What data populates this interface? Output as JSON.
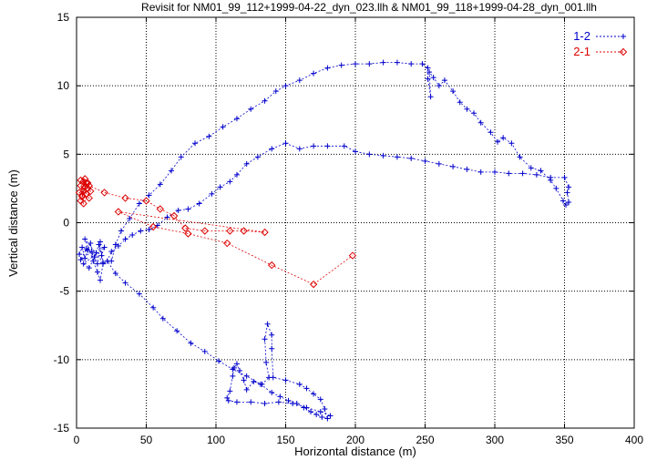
{
  "chart_data": {
    "type": "line",
    "title": "Revisit for NM01_99_112+1999-04-22_dyn_023.llh & NM01_99_118+1999-04-28_dyn_001.llh",
    "xlabel": "Horizontal distance (m)",
    "ylabel": "Vertical distance (m)",
    "xlim": [
      0,
      400
    ],
    "ylim": [
      -15,
      15
    ],
    "xticks": [
      0,
      50,
      100,
      150,
      200,
      250,
      300,
      350,
      400
    ],
    "yticks": [
      -15,
      -10,
      -5,
      0,
      5,
      10,
      15
    ],
    "grid": true,
    "legend_position": "top-right",
    "series": [
      {
        "name": "1-2",
        "color": "#0000cc",
        "marker": "plus",
        "line": "dashed",
        "points": [
          [
            2,
            -2.3
          ],
          [
            4,
            -1.8
          ],
          [
            6,
            -2.6
          ],
          [
            8,
            -2.0
          ],
          [
            10,
            -1.5
          ],
          [
            12,
            -2.8
          ],
          [
            14,
            -2.2
          ],
          [
            16,
            -1.6
          ],
          [
            18,
            -2.4
          ],
          [
            20,
            -1.8
          ],
          [
            5,
            -3.0
          ],
          [
            9,
            -3.3
          ],
          [
            13,
            -2.5
          ],
          [
            7,
            -1.9
          ],
          [
            3,
            -2.7
          ],
          [
            11,
            -2.1
          ],
          [
            15,
            -3.0
          ],
          [
            17,
            -1.4
          ],
          [
            19,
            -2.9
          ],
          [
            6,
            -1.2
          ],
          [
            15,
            -3.6
          ],
          [
            17,
            -4.2
          ],
          [
            19,
            -3.0
          ],
          [
            25,
            -2.8
          ],
          [
            28,
            -1.6
          ],
          [
            32,
            -0.6
          ],
          [
            38,
            0.3
          ],
          [
            45,
            1.4
          ],
          [
            52,
            2.0
          ],
          [
            60,
            2.8
          ],
          [
            68,
            3.8
          ],
          [
            75,
            4.8
          ],
          [
            85,
            5.8
          ],
          [
            95,
            6.3
          ],
          [
            105,
            7.0
          ],
          [
            115,
            7.6
          ],
          [
            125,
            8.3
          ],
          [
            135,
            8.9
          ],
          [
            143,
            9.6
          ],
          [
            150,
            10.0
          ],
          [
            160,
            10.4
          ],
          [
            170,
            10.9
          ],
          [
            180,
            11.3
          ],
          [
            190,
            11.5
          ],
          [
            200,
            11.6
          ],
          [
            210,
            11.6
          ],
          [
            220,
            11.7
          ],
          [
            230,
            11.7
          ],
          [
            240,
            11.6
          ],
          [
            248,
            11.6
          ],
          [
            252,
            11.3
          ],
          [
            252,
            10.5
          ],
          [
            254,
            9.2
          ],
          [
            253,
            11.0
          ],
          [
            256,
            10.6
          ],
          [
            260,
            10.0
          ],
          [
            264,
            10.4
          ],
          [
            270,
            9.6
          ],
          [
            275,
            8.8
          ],
          [
            280,
            8.3
          ],
          [
            285,
            8.0
          ],
          [
            290,
            7.3
          ],
          [
            297,
            6.6
          ],
          [
            302,
            5.9
          ],
          [
            306,
            6.2
          ],
          [
            312,
            5.8
          ],
          [
            318,
            4.8
          ],
          [
            326,
            4.0
          ],
          [
            333,
            3.8
          ],
          [
            340,
            3.1
          ],
          [
            344,
            2.5
          ],
          [
            349,
            1.6
          ],
          [
            351,
            1.3
          ],
          [
            353,
            1.5
          ],
          [
            352,
            2.2
          ],
          [
            353,
            2.6
          ],
          [
            350,
            3.3
          ],
          [
            340,
            3.3
          ],
          [
            330,
            3.5
          ],
          [
            320,
            3.6
          ],
          [
            310,
            3.6
          ],
          [
            300,
            3.7
          ],
          [
            290,
            3.7
          ],
          [
            280,
            3.9
          ],
          [
            270,
            4.1
          ],
          [
            260,
            4.3
          ],
          [
            250,
            4.5
          ],
          [
            240,
            4.7
          ],
          [
            230,
            4.8
          ],
          [
            220,
            4.9
          ],
          [
            210,
            5.0
          ],
          [
            200,
            5.2
          ],
          [
            192,
            5.6
          ],
          [
            180,
            5.6
          ],
          [
            170,
            5.6
          ],
          [
            160,
            5.4
          ],
          [
            150,
            5.8
          ],
          [
            140,
            5.4
          ],
          [
            130,
            4.8
          ],
          [
            122,
            4.3
          ],
          [
            115,
            3.5
          ],
          [
            110,
            3.0
          ],
          [
            103,
            2.6
          ],
          [
            97,
            2.1
          ],
          [
            88,
            1.4
          ],
          [
            80,
            1.0
          ],
          [
            73,
            0.9
          ],
          [
            65,
            0.4
          ],
          [
            58,
            -0.2
          ],
          [
            52,
            -0.5
          ],
          [
            46,
            -0.6
          ],
          [
            40,
            -0.9
          ],
          [
            35,
            -1.2
          ],
          [
            30,
            -1.7
          ],
          [
            25,
            -2.1
          ],
          [
            22,
            -2.8
          ],
          [
            28,
            -3.7
          ],
          [
            35,
            -4.4
          ],
          [
            45,
            -5.2
          ],
          [
            55,
            -6.2
          ],
          [
            62,
            -7.0
          ],
          [
            72,
            -7.9
          ],
          [
            82,
            -8.8
          ],
          [
            92,
            -9.4
          ],
          [
            102,
            -10.1
          ],
          [
            112,
            -10.7
          ],
          [
            122,
            -11.2
          ],
          [
            132,
            -11.8
          ],
          [
            140,
            -12.4
          ],
          [
            146,
            -12.7
          ],
          [
            152,
            -13.0
          ],
          [
            158,
            -13.2
          ],
          [
            163,
            -13.5
          ],
          [
            168,
            -13.8
          ],
          [
            172,
            -14.0
          ],
          [
            176,
            -14.2
          ],
          [
            180,
            -14.3
          ],
          [
            178,
            -13.6
          ],
          [
            175,
            -12.9
          ],
          [
            170,
            -12.5
          ],
          [
            165,
            -12.1
          ],
          [
            160,
            -11.8
          ],
          [
            150,
            -11.5
          ],
          [
            141,
            -11.3
          ],
          [
            140,
            -9.2
          ],
          [
            140,
            -8.2
          ],
          [
            137,
            -7.4
          ],
          [
            135,
            -8.5
          ],
          [
            136,
            -10.2
          ],
          [
            138,
            -11.3
          ],
          [
            133,
            -11.8
          ],
          [
            127,
            -11.6
          ],
          [
            122,
            -12.2
          ],
          [
            120,
            -11.5
          ],
          [
            117,
            -10.8
          ],
          [
            115,
            -10.3
          ],
          [
            113,
            -10.6
          ],
          [
            112,
            -11.2
          ],
          [
            110,
            -12.3
          ],
          [
            108,
            -12.8
          ],
          [
            109,
            -13.0
          ],
          [
            115,
            -13.1
          ],
          [
            125,
            -13.1
          ],
          [
            135,
            -13.2
          ],
          [
            145,
            -13.1
          ],
          [
            155,
            -13.2
          ],
          [
            165,
            -13.5
          ],
          [
            175,
            -13.8
          ],
          [
            182,
            -14.1
          ]
        ]
      },
      {
        "name": "2-1",
        "color": "#dd0000",
        "marker": "diamond",
        "line": "dashed",
        "points": [
          [
            3,
            2.7
          ],
          [
            5,
            2.3
          ],
          [
            7,
            2.9
          ],
          [
            4,
            1.9
          ],
          [
            6,
            3.2
          ],
          [
            8,
            2.5
          ],
          [
            2,
            2.2
          ],
          [
            9,
            1.8
          ],
          [
            5,
            3.0
          ],
          [
            7,
            2.1
          ],
          [
            3,
            1.6
          ],
          [
            6,
            2.6
          ],
          [
            4,
            2.0
          ],
          [
            8,
            2.9
          ],
          [
            10,
            2.3
          ],
          [
            5,
            1.4
          ],
          [
            3,
            3.1
          ],
          [
            9,
            2.7
          ],
          [
            20,
            2.2
          ],
          [
            35,
            1.8
          ],
          [
            50,
            1.6
          ],
          [
            60,
            1.0
          ],
          [
            70,
            0.5
          ],
          [
            78,
            -0.4
          ],
          [
            92,
            -0.6
          ],
          [
            110,
            -0.6
          ],
          [
            120,
            -0.6
          ],
          [
            135,
            -0.7
          ],
          [
            30,
            0.8
          ],
          [
            55,
            -0.3
          ],
          [
            80,
            -0.8
          ],
          [
            108,
            -1.5
          ],
          [
            140,
            -3.1
          ],
          [
            170,
            -4.5
          ],
          [
            198,
            -2.4
          ]
        ]
      }
    ]
  }
}
